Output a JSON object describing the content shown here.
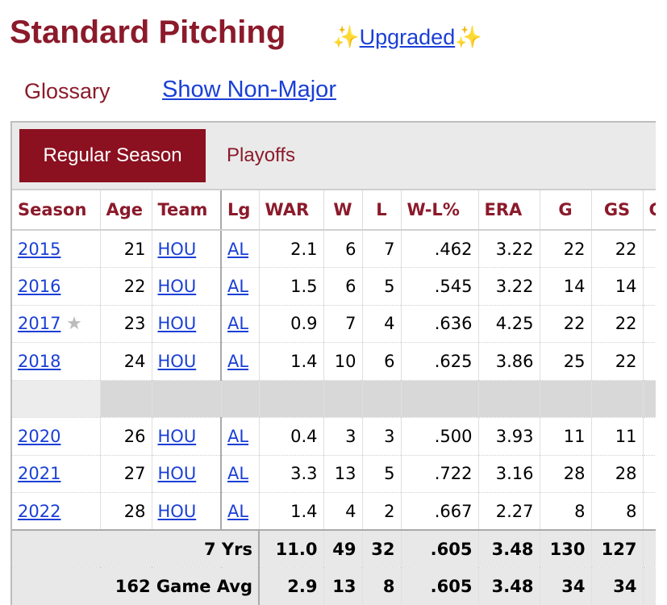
{
  "header": {
    "title": "Standard Pitching",
    "sparkle_left": "✨",
    "upgraded_link": "Upgraded",
    "sparkle_right": "✨",
    "glossary": "Glossary",
    "show_non_major": "Show Non-Major"
  },
  "tabs": {
    "regular": "Regular Season",
    "playoffs": "Playoffs"
  },
  "table": {
    "columns": [
      "Season",
      "Age",
      "Team",
      "Lg",
      "WAR",
      "W",
      "L",
      "W-L%",
      "ERA",
      "G",
      "GS",
      "G"
    ],
    "rows": [
      {
        "season": "2015",
        "age": "21",
        "team": "HOU",
        "lg": "AL",
        "war": "2.1",
        "w": "6",
        "l": "7",
        "wlp": ".462",
        "era": "3.22",
        "g": "22",
        "gs": "22"
      },
      {
        "season": "2016",
        "age": "22",
        "team": "HOU",
        "lg": "AL",
        "war": "1.5",
        "w": "6",
        "l": "5",
        "wlp": ".545",
        "era": "3.22",
        "g": "14",
        "gs": "14"
      },
      {
        "season": "2017",
        "star": "★",
        "age": "23",
        "team": "HOU",
        "lg": "AL",
        "war": "0.9",
        "w": "7",
        "l": "4",
        "wlp": ".636",
        "era": "4.25",
        "g": "22",
        "gs": "22"
      },
      {
        "season": "2018",
        "age": "24",
        "team": "HOU",
        "lg": "AL",
        "war": "1.4",
        "w": "10",
        "l": "6",
        "wlp": ".625",
        "era": "3.86",
        "g": "25",
        "gs": "22"
      },
      {
        "season": "2020",
        "age": "26",
        "team": "HOU",
        "lg": "AL",
        "war": "0.4",
        "w": "3",
        "l": "3",
        "wlp": ".500",
        "era": "3.93",
        "g": "11",
        "gs": "11"
      },
      {
        "season": "2021",
        "age": "27",
        "team": "HOU",
        "lg": "AL",
        "war": "3.3",
        "w": "13",
        "l": "5",
        "wlp": ".722",
        "era": "3.16",
        "g": "28",
        "gs": "28"
      },
      {
        "season": "2022",
        "age": "28",
        "team": "HOU",
        "lg": "AL",
        "war": "1.4",
        "w": "4",
        "l": "2",
        "wlp": ".667",
        "era": "2.27",
        "g": "8",
        "gs": "8"
      }
    ],
    "totals": [
      {
        "label": "7 Yrs",
        "war": "11.0",
        "w": "49",
        "l": "32",
        "wlp": ".605",
        "era": "3.48",
        "g": "130",
        "gs": "127"
      },
      {
        "label": "162 Game Avg",
        "war": "2.9",
        "w": "13",
        "l": "8",
        "wlp": ".605",
        "era": "3.48",
        "g": "34",
        "gs": "34"
      }
    ]
  },
  "colors": {
    "accent": "#8b1a2b",
    "tab_active": "#8b1020",
    "link": "#1a3fd6"
  }
}
